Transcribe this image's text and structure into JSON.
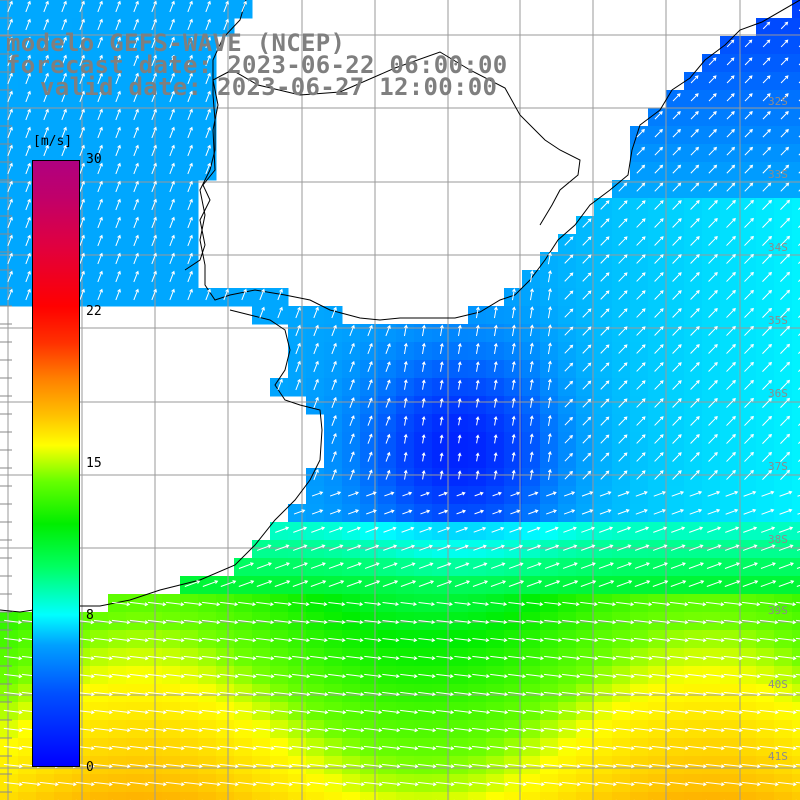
{
  "title": {
    "line1": "modelo GEFS-WAVE (NCEP)",
    "line2": "forecast date: 2023-06-22 06:00:00",
    "line3": "valid date: 2023-06-27 12:00:00"
  },
  "colorbar": {
    "unit": "[m/s]",
    "ticks": [
      "30",
      "22",
      "15",
      "8",
      "0"
    ],
    "min": 0,
    "max": 30
  },
  "grid": {
    "lat_labels": [
      "32S",
      "33S",
      "34S",
      "35S",
      "36S",
      "37S",
      "38S",
      "39S",
      "40S",
      "41S"
    ]
  },
  "colors": {
    "land": "#ffffff",
    "coast": "#000000",
    "grid": "#9a9a9a",
    "title": "#7f7f7f",
    "arrow": "#ffffff"
  }
}
